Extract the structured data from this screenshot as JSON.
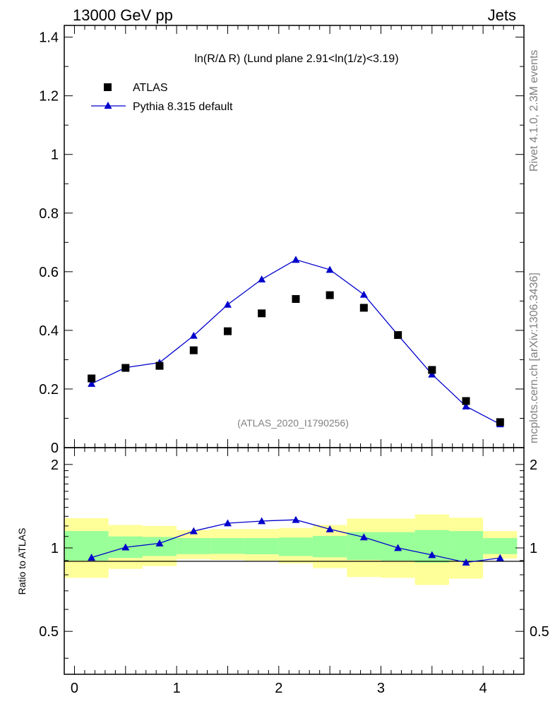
{
  "header": {
    "energy": "13000 GeV pp",
    "process": "Jets"
  },
  "side_labels": {
    "rivet": "Rivet 4.1.0,  2.3M events",
    "mcplots": "mcplots.cern.ch [arXiv:1306.3436]"
  },
  "colors": {
    "mc_line": "#0000cc",
    "band_outer": "#ffff99",
    "band_inner": "#99ff99",
    "data_marker": "#000000"
  },
  "chart_data": [
    {
      "type": "scatter",
      "panel": "main",
      "title": "ln(R/Δ R) (Lund plane 2.91<ln(1/z)<3.19)",
      "watermark": "(ATLAS_2020_I1790256)",
      "xlim": [
        -0.1,
        4.4
      ],
      "ylim": [
        0,
        1.44
      ],
      "ytick_labels": [
        "0",
        "0.2",
        "0.4",
        "0.6",
        "0.8",
        "1",
        "1.2",
        "1.4"
      ],
      "legend_position": "top-left",
      "x": [
        0.167,
        0.5,
        0.833,
        1.167,
        1.5,
        1.833,
        2.167,
        2.5,
        2.833,
        3.167,
        3.5,
        3.833,
        4.167
      ],
      "series": [
        {
          "name": "ATLAS",
          "marker": "square",
          "values": [
            0.236,
            0.272,
            0.279,
            0.332,
            0.397,
            0.458,
            0.507,
            0.52,
            0.477,
            0.384,
            0.265,
            0.159,
            0.087
          ]
        },
        {
          "name": "Pythia 8.315 default",
          "marker": "triangle-line",
          "values": [
            0.218,
            0.273,
            0.29,
            0.382,
            0.488,
            0.574,
            0.641,
            0.607,
            0.522,
            0.384,
            0.25,
            0.141,
            0.08
          ]
        }
      ]
    },
    {
      "type": "line",
      "panel": "ratio",
      "ylabel": "Ratio to ATLAS",
      "xlim": [
        -0.1,
        4.4
      ],
      "ylim": [
        0.35,
        2.3
      ],
      "x_tick_labels": [
        "0",
        "1",
        "2",
        "3",
        "4"
      ],
      "y_tick_labels": [
        "0.5",
        "1",
        "2"
      ],
      "bins": [
        [
          -0.1,
          0.333
        ],
        [
          0.333,
          0.667
        ],
        [
          0.667,
          1.0
        ],
        [
          1.0,
          1.333
        ],
        [
          1.333,
          1.667
        ],
        [
          1.667,
          2.0
        ],
        [
          2.0,
          2.333
        ],
        [
          2.333,
          2.667
        ],
        [
          2.667,
          3.0
        ],
        [
          3.0,
          3.333
        ],
        [
          3.333,
          3.667
        ],
        [
          3.667,
          4.0
        ],
        [
          4.0,
          4.333
        ]
      ],
      "band_outer": [
        [
          0.78,
          1.28
        ],
        [
          0.84,
          1.21
        ],
        [
          0.86,
          1.2
        ],
        [
          0.91,
          1.16
        ],
        [
          0.905,
          1.17
        ],
        [
          0.9,
          1.17
        ],
        [
          0.88,
          1.18
        ],
        [
          0.845,
          1.21
        ],
        [
          0.785,
          1.275
        ],
        [
          0.78,
          1.275
        ],
        [
          0.735,
          1.32
        ],
        [
          0.775,
          1.285
        ],
        [
          0.915,
          1.15
        ]
      ],
      "band_inner": [
        [
          0.9,
          1.15
        ],
        [
          0.92,
          1.1
        ],
        [
          0.935,
          1.095
        ],
        [
          0.95,
          1.085
        ],
        [
          0.952,
          1.085
        ],
        [
          0.948,
          1.085
        ],
        [
          0.935,
          1.09
        ],
        [
          0.925,
          1.105
        ],
        [
          0.905,
          1.14
        ],
        [
          0.9,
          1.14
        ],
        [
          0.885,
          1.16
        ],
        [
          0.9,
          1.15
        ],
        [
          0.95,
          1.085
        ]
      ],
      "x": [
        0.167,
        0.5,
        0.833,
        1.167,
        1.5,
        1.833,
        2.167,
        2.5,
        2.833,
        3.167,
        3.5,
        3.833,
        4.167
      ],
      "series": [
        {
          "name": "Pythia 8.315 default / ATLAS",
          "values": [
            0.923,
            1.005,
            1.039,
            1.15,
            1.228,
            1.25,
            1.263,
            1.168,
            1.093,
            1.0,
            0.943,
            0.886,
            0.92
          ]
        }
      ]
    }
  ]
}
